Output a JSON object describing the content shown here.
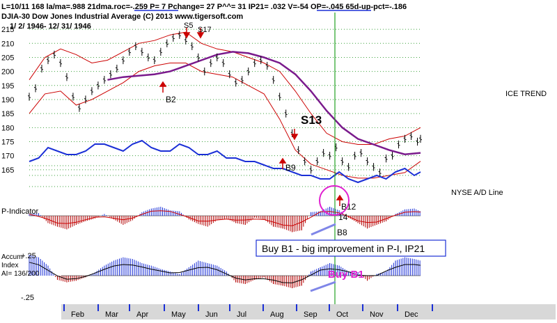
{
  "header": {
    "line1": "L=10/11  168  la/ma=.988 21dma.roc=-.259 P=  7 Pchange=  27 P^^= 31 IP21= .032 V=-54 OP=-.045 65d-up-pct=-.186",
    "line2": "DJIA-30  Dow Jones Industrial Average       (C) 2013 www.tigersoft.com",
    "line3": "1/ 2/ 1946- 12/ 31/ 1946"
  },
  "labels": {
    "ice_trend": "ICE TREND",
    "nyse_ad": "NYSE A/D Line",
    "p_indicator": "P-Indicator",
    "accum_line1": "Accum",
    "accum_line2": "Index",
    "accum_line3": "AI= 136/200",
    "accum_top": "+.25",
    "accum_bottom": "-.25"
  },
  "callout": {
    "text": "Buy B1 - big improvement in P-I, IP21",
    "buy_b1": "Buy B1"
  },
  "signals": {
    "s5": "S5",
    "s17": "S17",
    "b2": "B2",
    "s13": "S13",
    "b9": "B9",
    "b12": "B12",
    "n14": "14",
    "b8": "B8"
  },
  "colors": {
    "price": "#000000",
    "band": "#cc0000",
    "ma": "#7a1a8c",
    "ad_line": "#1a2fd6",
    "p_pos": "#1a2fd6",
    "p_neg": "#b20000",
    "accum_bar": "#1a2fd6",
    "grid": "#3aa03a",
    "vline": "#22a022",
    "circle": "#e020d0",
    "buy_text": "#e020d0",
    "callout_border": "#1a2fd6",
    "trendline": "#7f86e8",
    "months_bar": "#d8d8d8",
    "month_tick": "#1a2fd6"
  },
  "chart_data": {
    "type": "line",
    "title": "DJIA-30 Dow Jones Industrial Average",
    "subtitle": "1/ 2/ 1946- 12/ 31/ 1946",
    "y_axis": {
      "ticks": [
        215,
        210,
        205,
        200,
        195,
        190,
        185,
        180,
        175,
        170,
        165
      ],
      "ylim": [
        160.5,
        218
      ]
    },
    "x_axis": {
      "months": [
        "Feb",
        "Mar",
        "Apr",
        "May",
        "Jun",
        "Jul",
        "Aug",
        "Sep",
        "Oct",
        "Nov",
        "Dec"
      ]
    },
    "series": [
      {
        "name": "DJIA close",
        "x": [
          0,
          4,
          8,
          12,
          16,
          20,
          24,
          28,
          32,
          36,
          40,
          44,
          48,
          52,
          56,
          60,
          64,
          68,
          72,
          76,
          80,
          84,
          88,
          92,
          96,
          100,
          104,
          108,
          112,
          116,
          120,
          124,
          128,
          132,
          136,
          140,
          144,
          148,
          152,
          156,
          160,
          164,
          168,
          172,
          176,
          180,
          184,
          188,
          192,
          196,
          200,
          204,
          208,
          212,
          216,
          220,
          224,
          228,
          232,
          236,
          240,
          244,
          248,
          250
        ],
        "values": [
          191,
          194,
          201,
          204,
          206,
          203,
          198,
          191,
          187,
          190,
          193,
          195,
          197,
          199,
          201,
          204,
          207,
          209,
          207,
          205,
          204,
          207,
          210,
          212,
          213,
          211,
          209,
          205,
          200,
          203,
          205,
          203,
          199,
          196,
          197,
          200,
          203,
          204,
          202,
          197,
          191,
          185,
          178,
          172,
          168,
          165,
          168,
          171,
          170,
          173,
          168,
          166,
          170,
          171,
          168,
          166,
          164,
          169,
          170,
          174,
          176,
          177,
          175,
          176
        ]
      },
      {
        "name": "21-day moving average",
        "x": [
          50,
          60,
          70,
          80,
          90,
          100,
          110,
          120,
          130,
          140,
          150,
          160,
          170,
          180,
          190,
          200,
          210,
          220,
          230,
          240,
          250
        ],
        "values": [
          197,
          198,
          198.5,
          199,
          200,
          202,
          204,
          206,
          207,
          206.5,
          205,
          203,
          199,
          193,
          186,
          180,
          176,
          174,
          172,
          170.5,
          171
        ]
      },
      {
        "name": "Upper band",
        "x": [
          0,
          10,
          20,
          30,
          40,
          50,
          60,
          70,
          80,
          90,
          100,
          110,
          120,
          130,
          140,
          150,
          160,
          170,
          180,
          190,
          200,
          210,
          220,
          230,
          240,
          250
        ],
        "values": [
          197,
          205,
          208,
          206,
          203,
          204,
          207,
          210,
          211,
          213,
          214,
          210,
          208,
          207,
          205,
          203,
          200,
          193,
          185,
          178,
          175,
          174,
          174,
          176,
          177,
          180
        ]
      },
      {
        "name": "Lower band",
        "x": [
          0,
          10,
          20,
          30,
          40,
          50,
          60,
          70,
          80,
          90,
          100,
          110,
          120,
          130,
          140,
          150,
          160,
          170,
          180,
          190,
          200,
          210,
          220,
          230,
          240,
          250
        ],
        "values": [
          185,
          192,
          193,
          188,
          190,
          193,
          196,
          200,
          202,
          203,
          203,
          200,
          199,
          198,
          195,
          192,
          183,
          172,
          167,
          165,
          163,
          162,
          162,
          163,
          164,
          168
        ]
      },
      {
        "name": "NYSE A/D Line",
        "x": [
          0,
          6,
          12,
          18,
          24,
          30,
          36,
          42,
          48,
          54,
          60,
          66,
          72,
          78,
          84,
          90,
          96,
          102,
          108,
          114,
          120,
          126,
          132,
          138,
          144,
          150,
          156,
          162,
          168,
          174,
          180,
          186,
          192,
          198,
          204,
          210,
          216,
          222,
          228,
          234,
          240,
          246,
          250
        ],
        "values": [
          2,
          3,
          6,
          5,
          4,
          4,
          5,
          7,
          7,
          6,
          5,
          7,
          8,
          6,
          5,
          5,
          7,
          6,
          4,
          4,
          5,
          3,
          3,
          2,
          2,
          1,
          0,
          0,
          -1,
          -2,
          -2,
          -3,
          -3,
          -1,
          -3,
          -4,
          -3,
          -2,
          -3,
          -1,
          0,
          -2,
          -1
        ]
      },
      {
        "name": "P-Indicator",
        "x": [
          0,
          6,
          12,
          18,
          24,
          30,
          36,
          42,
          48,
          54,
          60,
          66,
          72,
          78,
          84,
          90,
          96,
          102,
          108,
          114,
          120,
          126,
          132,
          138,
          144,
          150,
          156,
          162,
          168,
          174,
          180,
          186,
          192,
          198,
          204,
          210,
          216,
          222,
          228,
          234,
          240,
          246,
          250
        ],
        "values": [
          2,
          3,
          -8,
          -12,
          -15,
          -10,
          -6,
          -3,
          2,
          -4,
          -10,
          -5,
          4,
          8,
          10,
          6,
          5,
          -4,
          -9,
          -12,
          -5,
          -3,
          -8,
          -10,
          -2,
          -4,
          -12,
          -14,
          -18,
          -16,
          4,
          5,
          10,
          6,
          -2,
          -8,
          -14,
          -10,
          -6,
          2,
          7,
          8,
          5
        ]
      },
      {
        "name": "Accumulation Index",
        "x": [
          0,
          6,
          12,
          18,
          24,
          30,
          36,
          42,
          48,
          54,
          60,
          66,
          72,
          78,
          84,
          90,
          96,
          102,
          108,
          114,
          120,
          126,
          132,
          138,
          144,
          150,
          156,
          162,
          168,
          174,
          180,
          186,
          192,
          198,
          204,
          210,
          216,
          222,
          228,
          234,
          240,
          246,
          250
        ],
        "values": [
          0.25,
          0.22,
          0.12,
          -0.05,
          -0.08,
          -0.06,
          -0.02,
          0.04,
          0.12,
          0.18,
          0.22,
          0.2,
          0.15,
          0.12,
          0.08,
          0.05,
          0.02,
          0.1,
          0.18,
          0.15,
          0.12,
          0.05,
          -0.08,
          -0.1,
          -0.05,
          -0.02,
          -0.1,
          -0.12,
          -0.15,
          -0.12,
          0.05,
          0.1,
          0.15,
          0.12,
          0.05,
          0.04,
          -0.06,
          0.02,
          0.05,
          0.18,
          0.22,
          0.2,
          0.18
        ]
      }
    ]
  }
}
